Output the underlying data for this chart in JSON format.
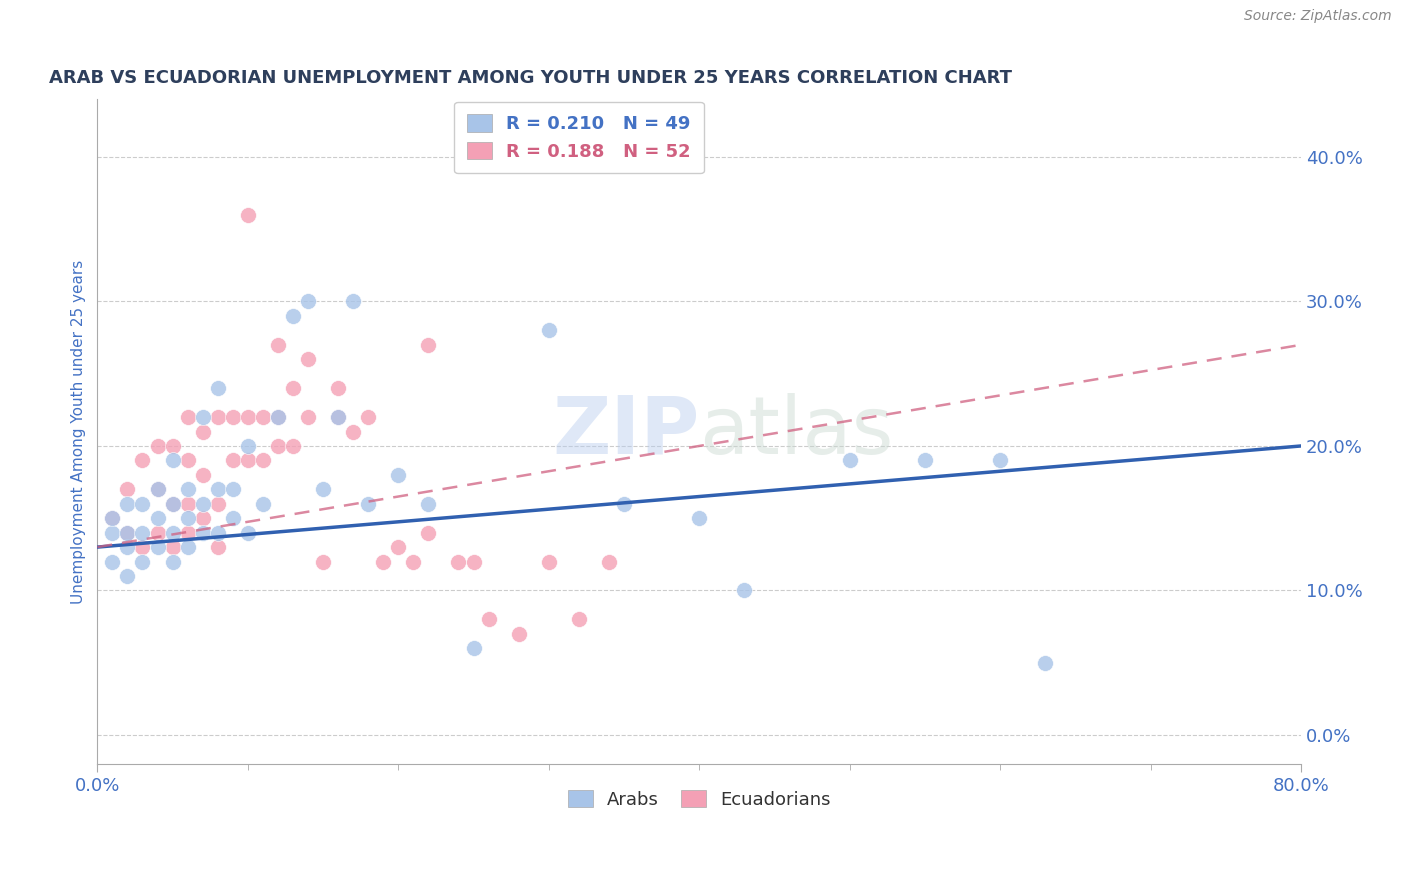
{
  "title": "ARAB VS ECUADORIAN UNEMPLOYMENT AMONG YOUTH UNDER 25 YEARS CORRELATION CHART",
  "source": "Source: ZipAtlas.com",
  "ylabel": "Unemployment Among Youth under 25 years",
  "xlim": [
    0.0,
    0.8
  ],
  "ylim": [
    -0.02,
    0.44
  ],
  "yticks": [
    0.0,
    0.1,
    0.2,
    0.3,
    0.4
  ],
  "watermark": "ZIPatlas",
  "arab_R": 0.21,
  "arab_N": 49,
  "ecu_R": 0.188,
  "ecu_N": 52,
  "arab_color": "#a8c4e8",
  "ecu_color": "#f4a0b5",
  "arab_line_color": "#3060b0",
  "ecu_line_color": "#d06080",
  "grid_color": "#cccccc",
  "title_color": "#2e3f5c",
  "axis_label_color": "#4472c4",
  "arab_line_y0": 0.13,
  "arab_line_y1": 0.2,
  "ecu_line_y0": 0.13,
  "ecu_line_y1": 0.27,
  "arab_x": [
    0.01,
    0.01,
    0.01,
    0.02,
    0.02,
    0.02,
    0.02,
    0.03,
    0.03,
    0.03,
    0.04,
    0.04,
    0.04,
    0.05,
    0.05,
    0.05,
    0.05,
    0.06,
    0.06,
    0.06,
    0.07,
    0.07,
    0.07,
    0.08,
    0.08,
    0.08,
    0.09,
    0.09,
    0.1,
    0.1,
    0.11,
    0.12,
    0.13,
    0.14,
    0.15,
    0.16,
    0.17,
    0.18,
    0.2,
    0.22,
    0.25,
    0.3,
    0.35,
    0.4,
    0.43,
    0.5,
    0.55,
    0.6,
    0.63
  ],
  "arab_y": [
    0.12,
    0.14,
    0.15,
    0.11,
    0.13,
    0.14,
    0.16,
    0.12,
    0.14,
    0.16,
    0.13,
    0.15,
    0.17,
    0.12,
    0.14,
    0.16,
    0.19,
    0.13,
    0.15,
    0.17,
    0.14,
    0.16,
    0.22,
    0.14,
    0.17,
    0.24,
    0.15,
    0.17,
    0.14,
    0.2,
    0.16,
    0.22,
    0.29,
    0.3,
    0.17,
    0.22,
    0.3,
    0.16,
    0.18,
    0.16,
    0.06,
    0.28,
    0.16,
    0.15,
    0.1,
    0.19,
    0.19,
    0.19,
    0.05
  ],
  "ecu_x": [
    0.01,
    0.02,
    0.02,
    0.03,
    0.03,
    0.04,
    0.04,
    0.04,
    0.05,
    0.05,
    0.05,
    0.06,
    0.06,
    0.06,
    0.06,
    0.07,
    0.07,
    0.07,
    0.08,
    0.08,
    0.08,
    0.09,
    0.09,
    0.1,
    0.1,
    0.1,
    0.11,
    0.11,
    0.12,
    0.12,
    0.12,
    0.13,
    0.13,
    0.14,
    0.14,
    0.15,
    0.16,
    0.16,
    0.17,
    0.18,
    0.19,
    0.2,
    0.21,
    0.22,
    0.22,
    0.24,
    0.25,
    0.26,
    0.28,
    0.3,
    0.32,
    0.34
  ],
  "ecu_y": [
    0.15,
    0.14,
    0.17,
    0.13,
    0.19,
    0.14,
    0.17,
    0.2,
    0.13,
    0.16,
    0.2,
    0.14,
    0.16,
    0.19,
    0.22,
    0.15,
    0.18,
    0.21,
    0.13,
    0.16,
    0.22,
    0.19,
    0.22,
    0.19,
    0.22,
    0.36,
    0.19,
    0.22,
    0.2,
    0.22,
    0.27,
    0.2,
    0.24,
    0.22,
    0.26,
    0.12,
    0.22,
    0.24,
    0.21,
    0.22,
    0.12,
    0.13,
    0.12,
    0.14,
    0.27,
    0.12,
    0.12,
    0.08,
    0.07,
    0.12,
    0.08,
    0.12
  ]
}
